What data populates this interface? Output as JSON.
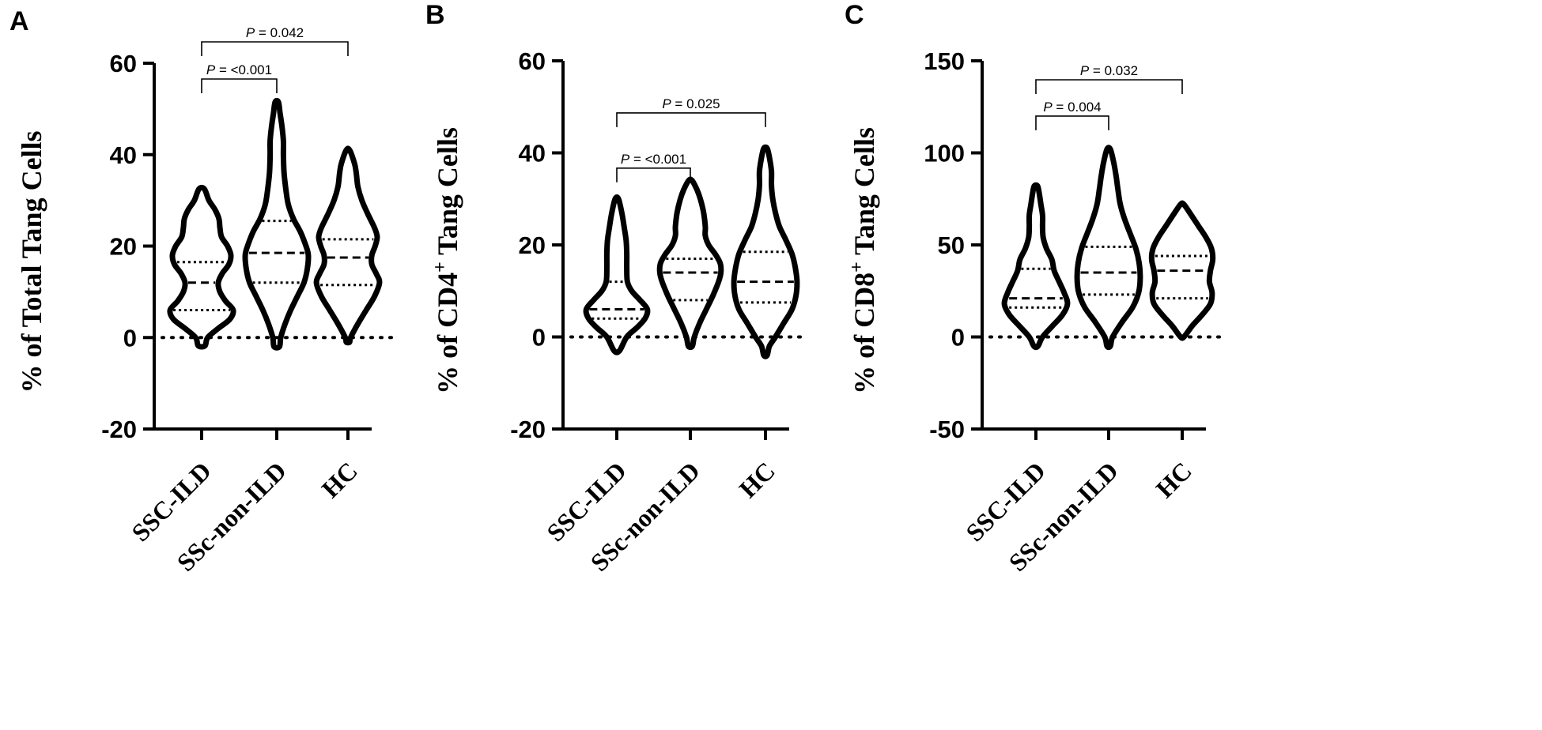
{
  "chart_data": [
    {
      "type": "violin",
      "panel": "A",
      "ylabel": "% of Total Tang Cells",
      "ylabel_sup": "",
      "ylabel_tail": "",
      "ylim": [
        -20,
        60
      ],
      "yticks": [
        -20,
        0,
        20,
        40,
        60
      ],
      "categories": [
        "SSC-ILD",
        "SSc-non-ILD",
        "HC"
      ],
      "reference_line": 0,
      "violins": [
        {
          "min": -1.8,
          "max": 32.5,
          "q1": 6.0,
          "median": 12.0,
          "q3": 16.5,
          "profile": [
            [
              -1.8,
              0.1
            ],
            [
              0,
              0.18
            ],
            [
              2,
              0.5
            ],
            [
              4,
              0.85
            ],
            [
              6,
              0.95
            ],
            [
              8,
              0.72
            ],
            [
              10,
              0.55
            ],
            [
              12,
              0.5
            ],
            [
              14,
              0.62
            ],
            [
              16,
              0.82
            ],
            [
              18,
              0.88
            ],
            [
              20,
              0.78
            ],
            [
              22,
              0.6
            ],
            [
              24,
              0.55
            ],
            [
              26,
              0.52
            ],
            [
              28,
              0.4
            ],
            [
              30,
              0.22
            ],
            [
              32.5,
              0.08
            ]
          ]
        },
        {
          "min": -2.0,
          "max": 51.5,
          "q1": 12.0,
          "median": 18.5,
          "q3": 25.5,
          "profile": [
            [
              -2,
              0.08
            ],
            [
              0,
              0.12
            ],
            [
              3,
              0.25
            ],
            [
              6,
              0.42
            ],
            [
              9,
              0.62
            ],
            [
              12,
              0.82
            ],
            [
              15,
              0.92
            ],
            [
              18,
              0.95
            ],
            [
              20,
              0.88
            ],
            [
              23,
              0.72
            ],
            [
              26,
              0.5
            ],
            [
              29,
              0.35
            ],
            [
              32,
              0.28
            ],
            [
              36,
              0.22
            ],
            [
              40,
              0.2
            ],
            [
              43,
              0.2
            ],
            [
              46,
              0.16
            ],
            [
              49,
              0.1
            ],
            [
              51.5,
              0.05
            ]
          ]
        },
        {
          "min": -1.0,
          "max": 41.0,
          "q1": 11.5,
          "median": 17.5,
          "q3": 21.5,
          "profile": [
            [
              -1,
              0.05
            ],
            [
              0,
              0.08
            ],
            [
              3,
              0.3
            ],
            [
              6,
              0.55
            ],
            [
              9,
              0.8
            ],
            [
              12,
              0.95
            ],
            [
              14,
              0.85
            ],
            [
              16,
              0.72
            ],
            [
              18,
              0.72
            ],
            [
              20,
              0.82
            ],
            [
              22,
              0.88
            ],
            [
              24,
              0.8
            ],
            [
              27,
              0.6
            ],
            [
              30,
              0.42
            ],
            [
              33,
              0.3
            ],
            [
              36,
              0.25
            ],
            [
              38,
              0.2
            ],
            [
              41,
              0.05
            ]
          ]
        }
      ],
      "comparisons": [
        {
          "from": 0,
          "to": 1,
          "p_label": "P",
          "p_text": " = <0.001"
        },
        {
          "from": 0,
          "to": 2,
          "p_label": "P",
          "p_text": " = 0.042"
        }
      ]
    },
    {
      "type": "violin",
      "panel": "B",
      "ylabel": "% of CD4",
      "ylabel_sup": "+",
      "ylabel_tail": " Tang Cells",
      "ylim": [
        -20,
        60
      ],
      "yticks": [
        -20,
        0,
        20,
        40,
        60
      ],
      "categories": [
        "SSC-ILD",
        "SSc-non-ILD",
        "HC"
      ],
      "reference_line": 0,
      "violins": [
        {
          "min": -3.0,
          "max": 30.0,
          "q1": 4.0,
          "median": 6.0,
          "q3": 12.0,
          "profile": [
            [
              -3,
              0.08
            ],
            [
              0,
              0.3
            ],
            [
              2,
              0.6
            ],
            [
              4,
              0.85
            ],
            [
              6,
              0.92
            ],
            [
              8,
              0.7
            ],
            [
              10,
              0.45
            ],
            [
              12,
              0.32
            ],
            [
              15,
              0.3
            ],
            [
              18,
              0.3
            ],
            [
              21,
              0.28
            ],
            [
              24,
              0.22
            ],
            [
              27,
              0.15
            ],
            [
              30,
              0.05
            ]
          ]
        },
        {
          "min": -2.0,
          "max": 34.0,
          "q1": 8.0,
          "median": 14.0,
          "q3": 17.0,
          "profile": [
            [
              -2,
              0.06
            ],
            [
              0,
              0.12
            ],
            [
              3,
              0.28
            ],
            [
              6,
              0.48
            ],
            [
              9,
              0.68
            ],
            [
              12,
              0.85
            ],
            [
              14,
              0.92
            ],
            [
              16,
              0.9
            ],
            [
              18,
              0.75
            ],
            [
              20,
              0.55
            ],
            [
              22,
              0.45
            ],
            [
              24,
              0.45
            ],
            [
              27,
              0.4
            ],
            [
              30,
              0.3
            ],
            [
              32,
              0.2
            ],
            [
              34,
              0.05
            ]
          ]
        },
        {
          "min": -4.0,
          "max": 41.0,
          "q1": 7.5,
          "median": 12.0,
          "q3": 18.5,
          "profile": [
            [
              -4,
              0.05
            ],
            [
              -2,
              0.12
            ],
            [
              0,
              0.3
            ],
            [
              3,
              0.55
            ],
            [
              6,
              0.8
            ],
            [
              9,
              0.92
            ],
            [
              12,
              0.95
            ],
            [
              15,
              0.9
            ],
            [
              18,
              0.8
            ],
            [
              21,
              0.62
            ],
            [
              24,
              0.42
            ],
            [
              27,
              0.3
            ],
            [
              30,
              0.22
            ],
            [
              33,
              0.18
            ],
            [
              36,
              0.18
            ],
            [
              39,
              0.12
            ],
            [
              41,
              0.05
            ]
          ]
        }
      ],
      "comparisons": [
        {
          "from": 0,
          "to": 1,
          "p_label": "P",
          "p_text": " = <0.001"
        },
        {
          "from": 0,
          "to": 2,
          "p_label": "P",
          "p_text": " = 0.025"
        }
      ]
    },
    {
      "type": "violin",
      "panel": "C",
      "ylabel": "% of CD8",
      "ylabel_sup": "+",
      "ylabel_tail": " Tang Cells",
      "ylim": [
        -50,
        150
      ],
      "yticks": [
        -50,
        0,
        50,
        100,
        150
      ],
      "categories": [
        "SSC-ILD",
        "SSc-non-ILD",
        "HC"
      ],
      "reference_line": 0,
      "violins": [
        {
          "min": -5.0,
          "max": 82.0,
          "q1": 16.0,
          "median": 21.0,
          "q3": 37.0,
          "profile": [
            [
              -5,
              0.06
            ],
            [
              0,
              0.2
            ],
            [
              6,
              0.5
            ],
            [
              12,
              0.8
            ],
            [
              18,
              0.95
            ],
            [
              24,
              0.85
            ],
            [
              30,
              0.7
            ],
            [
              36,
              0.55
            ],
            [
              42,
              0.48
            ],
            [
              48,
              0.32
            ],
            [
              54,
              0.22
            ],
            [
              60,
              0.2
            ],
            [
              66,
              0.2
            ],
            [
              72,
              0.15
            ],
            [
              78,
              0.1
            ],
            [
              82,
              0.05
            ]
          ]
        },
        {
          "min": -5.0,
          "max": 102.0,
          "q1": 23.0,
          "median": 35.0,
          "q3": 49.0,
          "profile": [
            [
              -5,
              0.05
            ],
            [
              0,
              0.12
            ],
            [
              8,
              0.4
            ],
            [
              16,
              0.72
            ],
            [
              24,
              0.9
            ],
            [
              32,
              0.95
            ],
            [
              40,
              0.92
            ],
            [
              48,
              0.82
            ],
            [
              56,
              0.65
            ],
            [
              64,
              0.48
            ],
            [
              72,
              0.35
            ],
            [
              80,
              0.28
            ],
            [
              88,
              0.22
            ],
            [
              95,
              0.15
            ],
            [
              102,
              0.05
            ]
          ]
        },
        {
          "min": 0.0,
          "max": 72.0,
          "q1": 21.0,
          "median": 36.0,
          "q3": 44.0,
          "profile": [
            [
              0,
              0.05
            ],
            [
              6,
              0.3
            ],
            [
              12,
              0.6
            ],
            [
              18,
              0.85
            ],
            [
              24,
              0.9
            ],
            [
              30,
              0.82
            ],
            [
              36,
              0.85
            ],
            [
              42,
              0.92
            ],
            [
              48,
              0.88
            ],
            [
              54,
              0.72
            ],
            [
              60,
              0.5
            ],
            [
              66,
              0.28
            ],
            [
              72,
              0.05
            ]
          ]
        }
      ],
      "comparisons": [
        {
          "from": 0,
          "to": 1,
          "p_label": "P",
          "p_text": " = 0.004"
        },
        {
          "from": 0,
          "to": 2,
          "p_label": "P",
          "p_text": " = 0.032"
        }
      ]
    }
  ]
}
